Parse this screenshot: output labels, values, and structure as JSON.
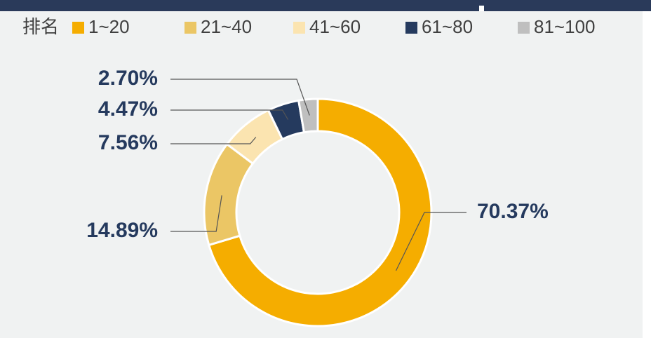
{
  "chart_data": {
    "type": "donut",
    "legend_title": "排名",
    "categories": [
      "1~20",
      "21~40",
      "41~60",
      "61~80",
      "81~100"
    ],
    "values": [
      70.37,
      14.89,
      7.56,
      4.47,
      2.7
    ],
    "value_labels": [
      "70.37%",
      "14.89%",
      "7.56%",
      "4.47%",
      "2.70%"
    ],
    "colors": [
      "#f5ad00",
      "#ebc665",
      "#fbe4b0",
      "#253a5e",
      "#bfbfbf"
    ],
    "legend": "top-left"
  }
}
